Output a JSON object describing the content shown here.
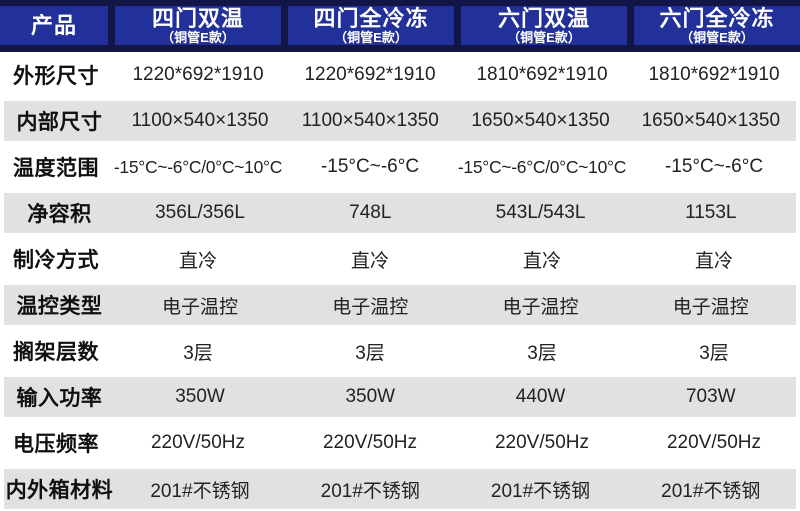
{
  "table": {
    "header": {
      "product_label": "产品",
      "columns": [
        {
          "title": "四门双温",
          "subtitle": "（铜管E款）"
        },
        {
          "title": "四门全冷冻",
          "subtitle": "（铜管E款）"
        },
        {
          "title": "六门双温",
          "subtitle": "（铜管E款）"
        },
        {
          "title": "六门全冷冻",
          "subtitle": "（铜管E款）"
        }
      ]
    },
    "rows": [
      {
        "label": "外形尺寸",
        "values": [
          "1220*692*1910",
          "1220*692*1910",
          "1810*692*1910",
          "1810*692*1910"
        ]
      },
      {
        "label": "内部尺寸",
        "values": [
          "1100×540×1350",
          "1100×540×1350",
          "1650×540×1350",
          "1650×540×1350"
        ]
      },
      {
        "label": "温度范围",
        "values": [
          "-15°C~-6°C/0°C~10°C",
          "-15°C~-6°C",
          "-15°C~-6°C/0°C~10°C",
          "-15°C~-6°C"
        ]
      },
      {
        "label": "净容积",
        "values": [
          "356L/356L",
          "748L",
          "543L/543L",
          "1153L"
        ]
      },
      {
        "label": "制冷方式",
        "values": [
          "直冷",
          "直冷",
          "直冷",
          "直冷"
        ]
      },
      {
        "label": "温控类型",
        "values": [
          "电子温控",
          "电子温控",
          "电子温控",
          "电子温控"
        ]
      },
      {
        "label": "搁架层数",
        "values": [
          "3层",
          "3层",
          "3层",
          "3层"
        ]
      },
      {
        "label": "输入功率",
        "values": [
          "350W",
          "350W",
          "440W",
          "703W"
        ]
      },
      {
        "label": "电压频率",
        "values": [
          "220V/50Hz",
          "220V/50Hz",
          "220V/50Hz",
          "220V/50Hz"
        ]
      },
      {
        "label": "内外箱材料",
        "values": [
          "201#不锈钢",
          "201#不锈钢",
          "201#不锈钢",
          "201#不锈钢"
        ]
      }
    ]
  },
  "colors": {
    "header_cell_bg": "#22309a",
    "header_frame_bg": "#131547",
    "header_text": "#ffffff",
    "row_alt_bg": "#e1e1e1",
    "row_bg": "#ffffff",
    "body_text": "#222222",
    "label_text": "#101010"
  }
}
